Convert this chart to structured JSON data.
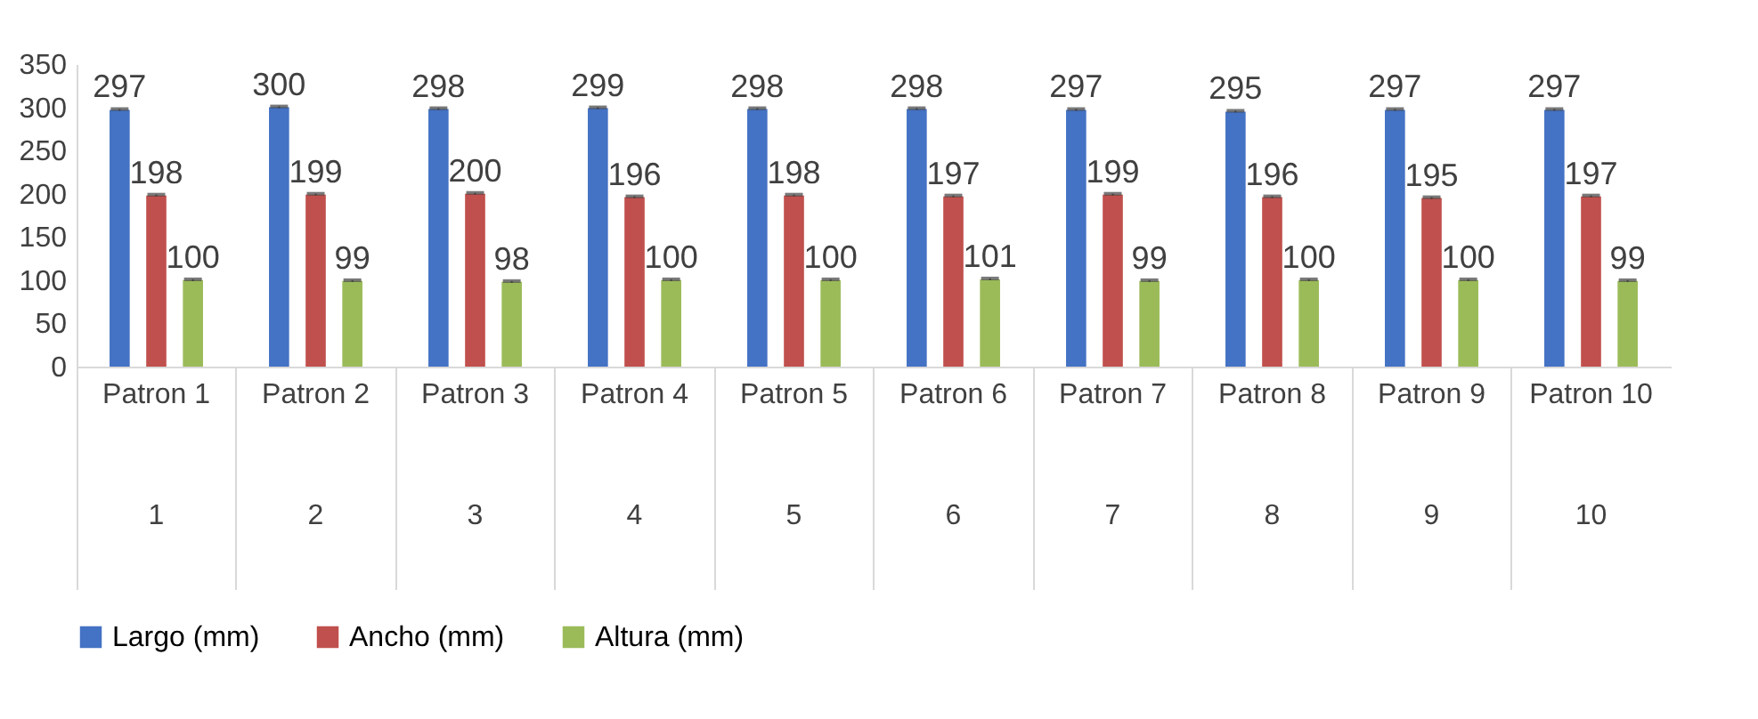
{
  "chart_data": {
    "type": "bar",
    "categories": [
      "Patron 1\n1",
      "Patron 2\n2",
      "Patron 3\n3",
      "Patron 4\n4",
      "Patron 5\n5",
      "Patron 6\n6",
      "Patron 7\n7",
      "Patron 8\n8",
      "Patron 9\n9",
      "Patron 10\n10"
    ],
    "series": [
      {
        "name": "Largo (mm)",
        "color": "#4472c4",
        "values": [
          297,
          300,
          298,
          299,
          298,
          298,
          297,
          295,
          297,
          297
        ],
        "errors": [
          1,
          1,
          1,
          1,
          1,
          1,
          1,
          1,
          1,
          1
        ]
      },
      {
        "name": "Ancho (mm)",
        "color": "#c0504d",
        "values": [
          198,
          199,
          200,
          196,
          198,
          197,
          199,
          196,
          195,
          197
        ],
        "errors": [
          1,
          1,
          1,
          1,
          1,
          1,
          1,
          1,
          1,
          1
        ]
      },
      {
        "name": "Altura (mm)",
        "color": "#9bbb59",
        "values": [
          100,
          99,
          98,
          100,
          100,
          101,
          99,
          100,
          100,
          99
        ],
        "errors": [
          1,
          1,
          1,
          1,
          1,
          1,
          1,
          1,
          1,
          1
        ]
      }
    ],
    "ylim": [
      0,
      350
    ],
    "yticks": [
      0,
      50,
      100,
      150,
      200,
      250,
      300,
      350
    ],
    "data_labels": true,
    "legend": "bottom",
    "grid": false
  }
}
